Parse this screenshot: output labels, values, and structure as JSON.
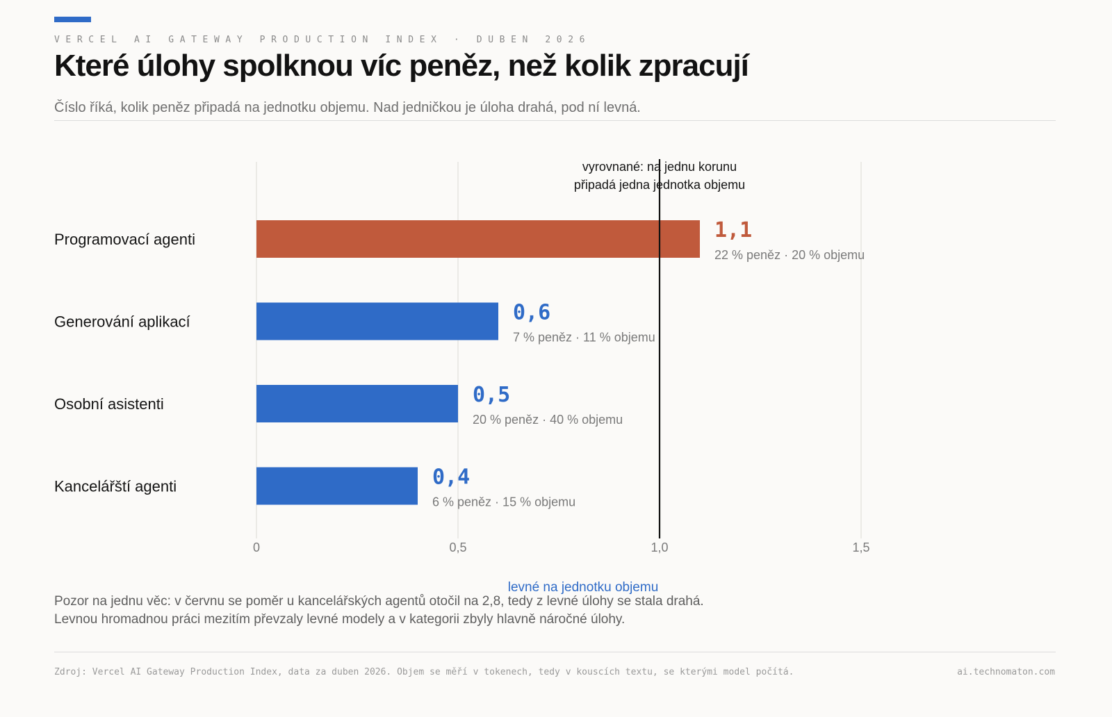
{
  "colors": {
    "accent": "#2f6bc7",
    "highlight": "#c05a3c",
    "bar_default": "#2f6bc7",
    "grid": "#e6e4e0",
    "reference_line": "#111111"
  },
  "header": {
    "kicker": "VERCEL AI GATEWAY PRODUCTION INDEX · DUBEN 2026",
    "title": "Které úlohy spolknou víc peněz, než kolik zpracují",
    "subtitle": "Číslo říká, kolik peněz připadá na jednotku objemu. Nad jedničkou je úloha drahá, pod ní levná."
  },
  "chart_data": {
    "type": "bar",
    "orientation": "horizontal",
    "categories": [
      "Programovací agenti",
      "Generování aplikací",
      "Osobní asistenti",
      "Kancelářští agenti"
    ],
    "values": [
      1.1,
      0.6,
      0.5,
      0.4
    ],
    "value_labels": [
      "1,1",
      "0,6",
      "0,5",
      "0,4"
    ],
    "money_share": [
      "22 % peněz",
      "7 % peněz",
      "20 % peněz",
      "6 % peněz"
    ],
    "volume_share": [
      "20 % objemu",
      "11 % objemu",
      "40 % objemu",
      "15 % objemu"
    ],
    "highlighted": [
      true,
      false,
      false,
      false
    ],
    "xlim": [
      0,
      1.5
    ],
    "xticks": [
      0,
      0.5,
      1.0,
      1.5
    ],
    "xtick_labels": [
      "0",
      "0,5",
      "1,0",
      "1,5"
    ],
    "grid": true,
    "reference_line": {
      "x": 1.0,
      "label_lines": [
        "vyrovnané:  na jednu korunu",
        "připadá jedna jednotka objemu"
      ]
    },
    "axis_annotation": "levné na jednotku objemu"
  },
  "note": {
    "line1": "Pozor na jednu věc: v červnu se poměr u kancelářských agentů otočil na 2,8, tedy z levné úlohy se stala drahá.",
    "line2": "Levnou hromadnou práci mezitím převzaly levné modely a v kategorii zbyly hlavně náročné úlohy."
  },
  "footer": {
    "source": "Zdroj: Vercel AI Gateway Production Index, data za duben 2026. Objem se měří v tokenech, tedy v kouscích textu, se kterými model počítá.",
    "site": "ai.technomaton.com"
  }
}
